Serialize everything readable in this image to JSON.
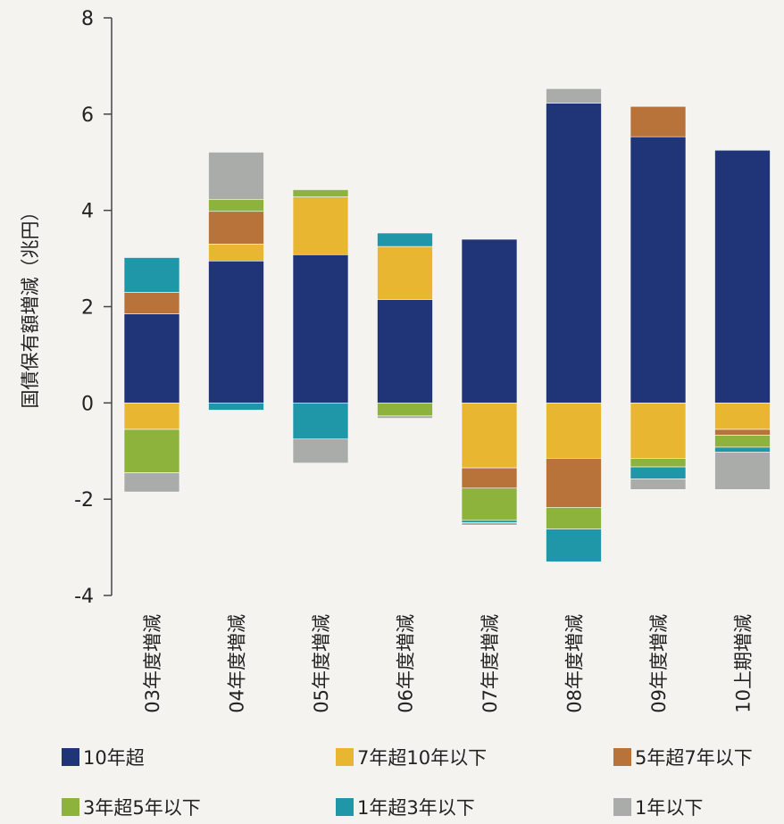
{
  "chart_data": {
    "type": "bar",
    "stacked": true,
    "title": "",
    "xlabel": "",
    "ylabel": "国債保有額増減（兆円）",
    "ylim": [
      -4,
      8
    ],
    "yticks": [
      8,
      6,
      4,
      2,
      0,
      -2,
      -4
    ],
    "grid": false,
    "legend_position": "bottom",
    "categories": [
      "03年度増減",
      "04年度増減",
      "05年度増減",
      "06年度増減",
      "07年度増減",
      "08年度増減",
      "09年度増減",
      "10上期増減"
    ],
    "series": [
      {
        "name": "10年超",
        "color": "#1f3577",
        "values": [
          1.85,
          2.95,
          3.08,
          2.15,
          3.4,
          6.23,
          5.53,
          5.25
        ]
      },
      {
        "name": "7年超10年以下",
        "color": "#e8b630",
        "values": [
          -0.55,
          0.35,
          1.2,
          1.1,
          -1.35,
          -1.15,
          -1.15,
          -0.55
        ]
      },
      {
        "name": "5年超7年以下",
        "color": "#b8733a",
        "values": [
          0.45,
          0.68,
          0.0,
          0.0,
          -0.42,
          -1.02,
          0.63,
          -0.12
        ]
      },
      {
        "name": "3年超5年以下",
        "color": "#8db33c",
        "values": [
          -0.9,
          0.25,
          0.15,
          -0.27,
          -0.67,
          -0.45,
          -0.18,
          -0.25
        ]
      },
      {
        "name": "1年超3年以下",
        "color": "#1f97a8",
        "values": [
          0.72,
          -0.15,
          -0.75,
          0.28,
          -0.05,
          -0.68,
          -0.25,
          -0.1
        ]
      },
      {
        "name": "1年以下",
        "color": "#a9aca8",
        "values": [
          -0.4,
          0.98,
          -0.5,
          -0.05,
          -0.05,
          0.3,
          -0.22,
          -0.78
        ]
      }
    ]
  }
}
